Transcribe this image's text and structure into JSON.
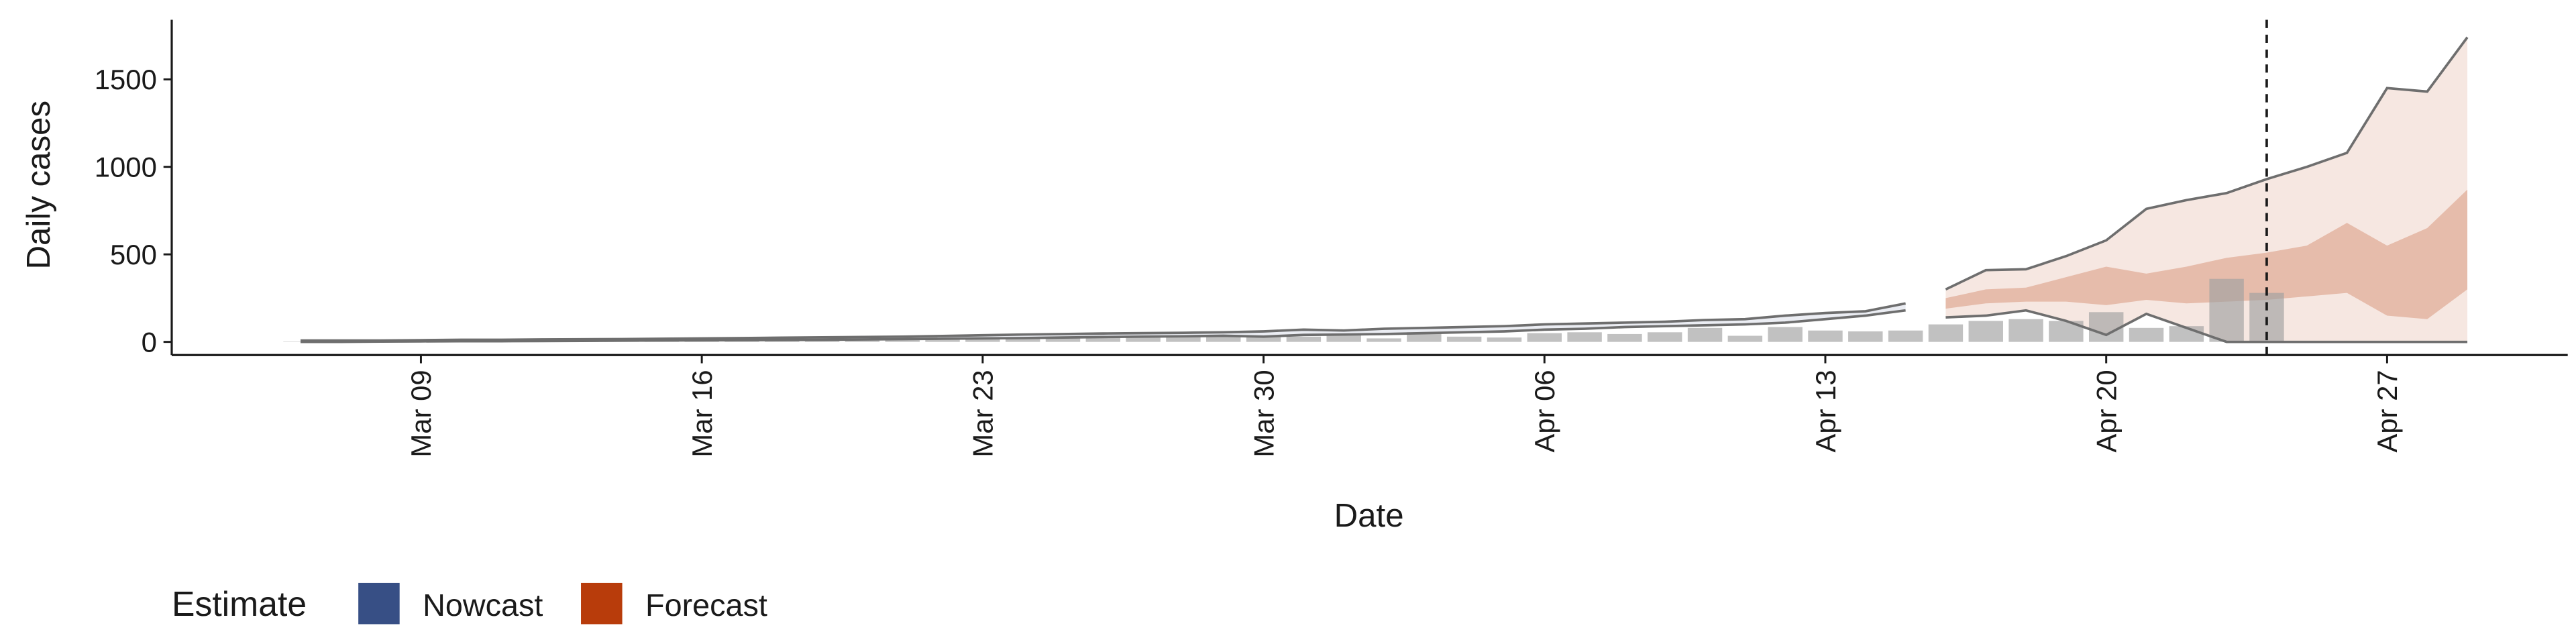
{
  "chart_data": {
    "type": "band-forecast",
    "xlabel": "Date",
    "ylabel": "Daily cases",
    "legend_title": "Estimate",
    "categories": [
      null,
      null,
      null,
      "Mar 09",
      null,
      null,
      null,
      null,
      null,
      null,
      "Mar 16",
      null,
      null,
      null,
      null,
      null,
      null,
      "Mar 23",
      null,
      null,
      null,
      null,
      null,
      null,
      "Mar 30",
      null,
      null,
      null,
      null,
      null,
      null,
      "Apr 06",
      null,
      null,
      null,
      null,
      null,
      null,
      "Apr 13",
      null,
      null,
      null,
      null,
      null,
      null,
      "Apr 20",
      null,
      null,
      null,
      null,
      null,
      null,
      "Apr 27",
      null,
      null
    ],
    "values": [
      2,
      3,
      4,
      5,
      6,
      6,
      8,
      8,
      10,
      12,
      12,
      14,
      15,
      14,
      18,
      20,
      22,
      25,
      25,
      28,
      30,
      25,
      30,
      35,
      35,
      30,
      40,
      20,
      55,
      30,
      25,
      50,
      55,
      45,
      55,
      80,
      35,
      85,
      65,
      60,
      65,
      100,
      120,
      130,
      120,
      170,
      80,
      90,
      360,
      280,
      null,
      null,
      null,
      null,
      null
    ],
    "bar_color": "#a0a0a0",
    "series": [
      {
        "name": "Nowcast",
        "color": "#374f85",
        "upper": [
          8,
          8,
          8,
          10,
          12,
          12,
          14,
          15,
          16,
          18,
          20,
          22,
          24,
          26,
          28,
          30,
          34,
          38,
          42,
          45,
          48,
          50,
          52,
          55,
          60,
          70,
          65,
          75,
          80,
          85,
          90,
          100,
          105,
          110,
          115,
          125,
          130,
          150,
          165,
          175,
          220,
          null,
          null,
          null,
          null,
          null,
          null,
          null,
          null,
          null,
          null,
          null,
          null,
          null,
          null
        ],
        "lower": [
          0,
          0,
          2,
          3,
          4,
          4,
          5,
          6,
          7,
          8,
          9,
          10,
          11,
          12,
          14,
          16,
          18,
          20,
          22,
          25,
          28,
          30,
          32,
          35,
          30,
          40,
          42,
          45,
          50,
          55,
          60,
          70,
          75,
          85,
          90,
          95,
          100,
          110,
          130,
          150,
          180,
          null,
          null,
          null,
          null,
          null,
          null,
          null,
          null,
          null,
          null,
          null,
          null,
          null,
          null
        ]
      },
      {
        "name": "Forecast",
        "color": "#b83c0b",
        "upper": [
          null,
          null,
          null,
          null,
          null,
          null,
          null,
          null,
          null,
          null,
          null,
          null,
          null,
          null,
          null,
          null,
          null,
          null,
          null,
          null,
          null,
          null,
          null,
          null,
          null,
          null,
          null,
          null,
          null,
          null,
          null,
          null,
          null,
          null,
          null,
          null,
          null,
          null,
          null,
          null,
          null,
          300,
          410,
          415,
          490,
          580,
          760,
          810,
          850,
          930,
          1000,
          1080,
          1450,
          1430,
          1740
        ],
        "lower": [
          null,
          null,
          null,
          null,
          null,
          null,
          null,
          null,
          null,
          null,
          null,
          null,
          null,
          null,
          null,
          null,
          null,
          null,
          null,
          null,
          null,
          null,
          null,
          null,
          null,
          null,
          null,
          null,
          null,
          null,
          null,
          null,
          null,
          null,
          null,
          null,
          null,
          null,
          null,
          null,
          null,
          140,
          150,
          180,
          120,
          40,
          160,
          80,
          0,
          0,
          0,
          0,
          0,
          0,
          0
        ],
        "upper50": [
          null,
          null,
          null,
          null,
          null,
          null,
          null,
          null,
          null,
          null,
          null,
          null,
          null,
          null,
          null,
          null,
          null,
          null,
          null,
          null,
          null,
          null,
          null,
          null,
          null,
          null,
          null,
          null,
          null,
          null,
          null,
          null,
          null,
          null,
          null,
          null,
          null,
          null,
          null,
          null,
          null,
          250,
          300,
          310,
          370,
          430,
          390,
          430,
          480,
          510,
          550,
          680,
          550,
          650,
          870
        ],
        "lower50": [
          null,
          null,
          null,
          null,
          null,
          null,
          null,
          null,
          null,
          null,
          null,
          null,
          null,
          null,
          null,
          null,
          null,
          null,
          null,
          null,
          null,
          null,
          null,
          null,
          null,
          null,
          null,
          null,
          null,
          null,
          null,
          null,
          null,
          null,
          null,
          null,
          null,
          null,
          null,
          null,
          null,
          190,
          220,
          230,
          230,
          210,
          240,
          220,
          230,
          240,
          260,
          280,
          150,
          130,
          300
        ]
      }
    ],
    "vline_category_index": 49,
    "ylim": [
      -75,
      1840
    ],
    "yticks": [
      0,
      500,
      1000,
      1500
    ],
    "grid": false
  }
}
